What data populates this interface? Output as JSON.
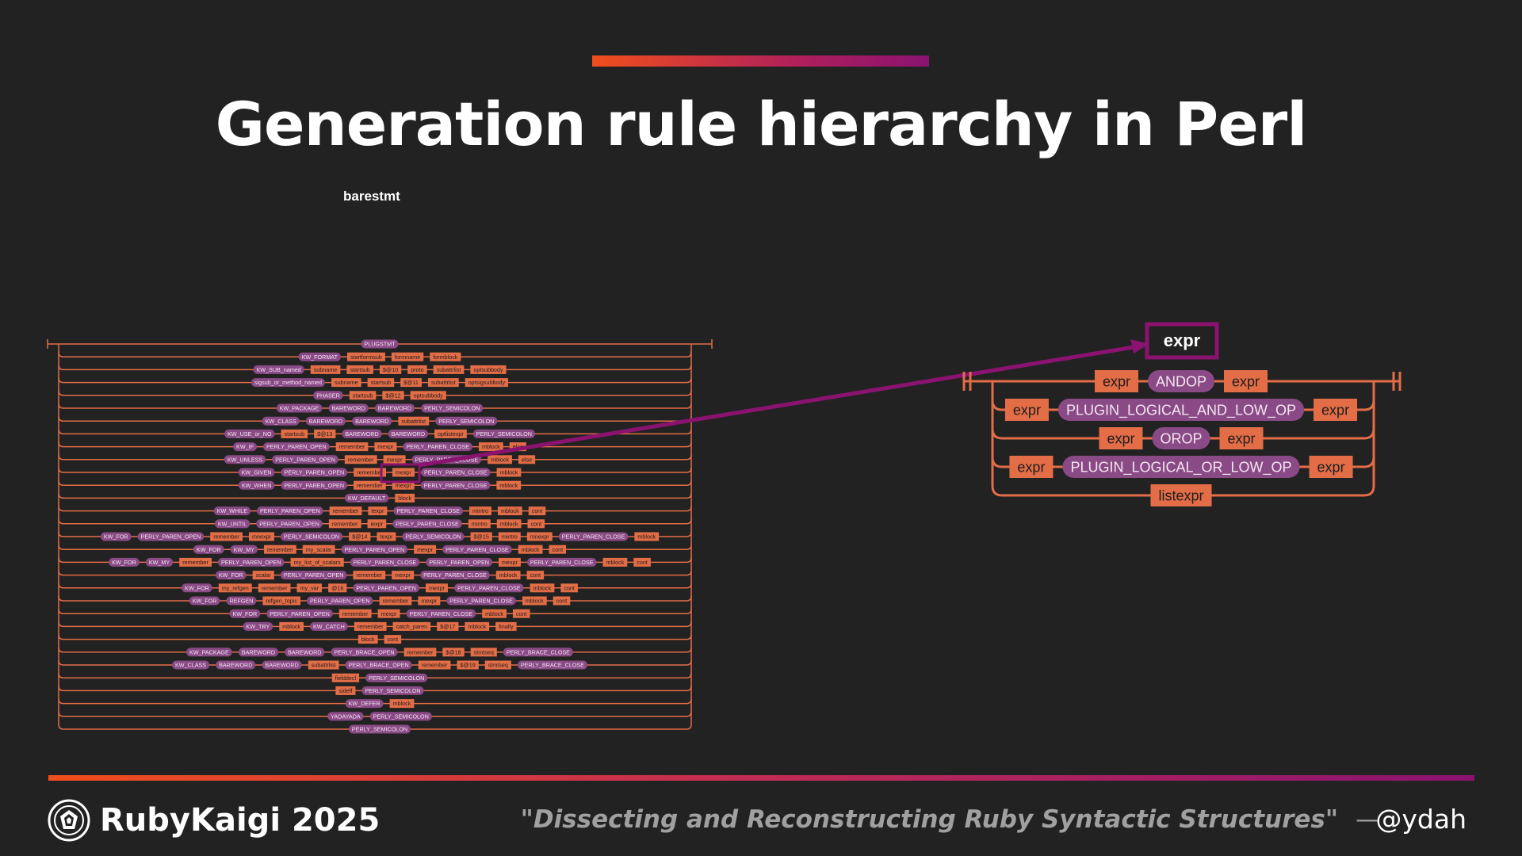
{
  "slide": {
    "title": "Generation rule hierarchy in Perl",
    "rule_name": "barestmt",
    "footer_brand": "RubyKaigi 2025",
    "footer_talk": "\"Dissecting and Reconstructing Ruby Syntactic Structures\"",
    "footer_dash": "—",
    "footer_handle": "@ydah"
  },
  "colors": {
    "background": "#222222",
    "terminal": "#8a4a86",
    "nonterminal": "#e36d47",
    "track": "#e36d47",
    "highlight": "#8a136f",
    "accent_start": "#f04e1c",
    "accent_end": "#8a136f"
  },
  "icons": {
    "logo": "rubykaigi-logo-icon"
  },
  "barestmt_rows": [
    [
      [
        "t",
        "PLUGSTMT"
      ]
    ],
    [
      [
        "t",
        "KW_FORMAT"
      ],
      [
        "n",
        "startformsub"
      ],
      [
        "n",
        "formname"
      ],
      [
        "n",
        "formblock"
      ]
    ],
    [
      [
        "t",
        "KW_SUB_named"
      ],
      [
        "n",
        "subname"
      ],
      [
        "n",
        "startsub"
      ],
      [
        "n",
        "$@10"
      ],
      [
        "n",
        "proto"
      ],
      [
        "n",
        "subattrlist"
      ],
      [
        "n",
        "optsubbody"
      ]
    ],
    [
      [
        "t",
        "sigsub_or_method_named"
      ],
      [
        "n",
        "subname"
      ],
      [
        "n",
        "startsub"
      ],
      [
        "n",
        "$@11"
      ],
      [
        "n",
        "subattrlist"
      ],
      [
        "n",
        "optsigsubbody"
      ]
    ],
    [
      [
        "t",
        "PHASER"
      ],
      [
        "n",
        "startsub"
      ],
      [
        "n",
        "$@12"
      ],
      [
        "n",
        "optsubbody"
      ]
    ],
    [
      [
        "t",
        "KW_PACKAGE"
      ],
      [
        "t",
        "BAREWORD"
      ],
      [
        "t",
        "BAREWORD"
      ],
      [
        "t",
        "PERLY_SEMICOLON"
      ]
    ],
    [
      [
        "t",
        "KW_CLASS"
      ],
      [
        "t",
        "BAREWORD"
      ],
      [
        "t",
        "BAREWORD"
      ],
      [
        "n",
        "subattrlist"
      ],
      [
        "t",
        "PERLY_SEMICOLON"
      ]
    ],
    [
      [
        "t",
        "KW_USE_or_NO"
      ],
      [
        "n",
        "startsub"
      ],
      [
        "n",
        "$@13"
      ],
      [
        "t",
        "BAREWORD"
      ],
      [
        "t",
        "BAREWORD"
      ],
      [
        "n",
        "optlistexpr"
      ],
      [
        "t",
        "PERLY_SEMICOLON"
      ]
    ],
    [
      [
        "t",
        "KW_IF"
      ],
      [
        "t",
        "PERLY_PAREN_OPEN"
      ],
      [
        "n",
        "remember"
      ],
      [
        "n",
        "mexpr"
      ],
      [
        "t",
        "PERLY_PAREN_CLOSE"
      ],
      [
        "n",
        "mblock"
      ],
      [
        "n",
        "else"
      ]
    ],
    [
      [
        "t",
        "KW_UNLESS"
      ],
      [
        "t",
        "PERLY_PAREN_OPEN"
      ],
      [
        "n",
        "remember"
      ],
      [
        "n",
        "mexpr"
      ],
      [
        "t",
        "PERLY_PAREN_CLOSE"
      ],
      [
        "n",
        "mblock"
      ],
      [
        "n",
        "else"
      ]
    ],
    [
      [
        "t",
        "KW_GIVEN"
      ],
      [
        "t",
        "PERLY_PAREN_OPEN"
      ],
      [
        "n",
        "remember"
      ],
      [
        "n",
        "mexpr"
      ],
      [
        "t",
        "PERLY_PAREN_CLOSE"
      ],
      [
        "n",
        "mblock"
      ]
    ],
    [
      [
        "t",
        "KW_WHEN"
      ],
      [
        "t",
        "PERLY_PAREN_OPEN"
      ],
      [
        "n",
        "remember"
      ],
      [
        "n",
        "mexpr"
      ],
      [
        "t",
        "PERLY_PAREN_CLOSE"
      ],
      [
        "n",
        "mblock"
      ]
    ],
    [
      [
        "t",
        "KW_DEFAULT"
      ],
      [
        "n",
        "block"
      ]
    ],
    [
      [
        "t",
        "KW_WHILE"
      ],
      [
        "t",
        "PERLY_PAREN_OPEN"
      ],
      [
        "n",
        "remember"
      ],
      [
        "n",
        "texpr"
      ],
      [
        "t",
        "PERLY_PAREN_CLOSE"
      ],
      [
        "n",
        "mintro"
      ],
      [
        "n",
        "mblock"
      ],
      [
        "n",
        "cont"
      ]
    ],
    [
      [
        "t",
        "KW_UNTIL"
      ],
      [
        "t",
        "PERLY_PAREN_OPEN"
      ],
      [
        "n",
        "remember"
      ],
      [
        "n",
        "iexpr"
      ],
      [
        "t",
        "PERLY_PAREN_CLOSE"
      ],
      [
        "n",
        "mintro"
      ],
      [
        "n",
        "mblock"
      ],
      [
        "n",
        "cont"
      ]
    ],
    [
      [
        "t",
        "KW_FOR"
      ],
      [
        "t",
        "PERLY_PAREN_OPEN"
      ],
      [
        "n",
        "remember"
      ],
      [
        "n",
        "mnexpr"
      ],
      [
        "t",
        "PERLY_SEMICOLON"
      ],
      [
        "n",
        "$@14"
      ],
      [
        "n",
        "texpr"
      ],
      [
        "t",
        "PERLY_SEMICOLON"
      ],
      [
        "n",
        "$@15"
      ],
      [
        "n",
        "mintro"
      ],
      [
        "n",
        "mnexpr"
      ],
      [
        "t",
        "PERLY_PAREN_CLOSE"
      ],
      [
        "n",
        "mblock"
      ]
    ],
    [
      [
        "t",
        "KW_FOR"
      ],
      [
        "t",
        "KW_MY"
      ],
      [
        "n",
        "remember"
      ],
      [
        "n",
        "my_scalar"
      ],
      [
        "t",
        "PERLY_PAREN_OPEN"
      ],
      [
        "n",
        "mexpr"
      ],
      [
        "t",
        "PERLY_PAREN_CLOSE"
      ],
      [
        "n",
        "mblock"
      ],
      [
        "n",
        "cont"
      ]
    ],
    [
      [
        "t",
        "KW_FOR"
      ],
      [
        "t",
        "KW_MY"
      ],
      [
        "n",
        "remember"
      ],
      [
        "t",
        "PERLY_PAREN_OPEN"
      ],
      [
        "n",
        "my_list_of_scalars"
      ],
      [
        "t",
        "PERLY_PAREN_CLOSE"
      ],
      [
        "t",
        "PERLY_PAREN_OPEN"
      ],
      [
        "n",
        "mexpr"
      ],
      [
        "t",
        "PERLY_PAREN_CLOSE"
      ],
      [
        "n",
        "mblock"
      ],
      [
        "n",
        "cont"
      ]
    ],
    [
      [
        "t",
        "KW_FOR"
      ],
      [
        "n",
        "scalar"
      ],
      [
        "t",
        "PERLY_PAREN_OPEN"
      ],
      [
        "n",
        "remember"
      ],
      [
        "n",
        "mexpr"
      ],
      [
        "t",
        "PERLY_PAREN_CLOSE"
      ],
      [
        "n",
        "mblock"
      ],
      [
        "n",
        "cont"
      ]
    ],
    [
      [
        "t",
        "KW_FOR"
      ],
      [
        "n",
        "my_refgen"
      ],
      [
        "n",
        "remember"
      ],
      [
        "n",
        "my_var"
      ],
      [
        "n",
        "@16"
      ],
      [
        "t",
        "PERLY_PAREN_OPEN"
      ],
      [
        "n",
        "mexpr"
      ],
      [
        "t",
        "PERLY_PAREN_CLOSE"
      ],
      [
        "n",
        "mblock"
      ],
      [
        "n",
        "cont"
      ]
    ],
    [
      [
        "t",
        "KW_FOR"
      ],
      [
        "t",
        "REFGEN"
      ],
      [
        "n",
        "refgen_topic"
      ],
      [
        "t",
        "PERLY_PAREN_OPEN"
      ],
      [
        "n",
        "remember"
      ],
      [
        "n",
        "mexpr"
      ],
      [
        "t",
        "PERLY_PAREN_CLOSE"
      ],
      [
        "n",
        "mblock"
      ],
      [
        "n",
        "cont"
      ]
    ],
    [
      [
        "t",
        "KW_FOR"
      ],
      [
        "t",
        "PERLY_PAREN_OPEN"
      ],
      [
        "n",
        "remember"
      ],
      [
        "n",
        "mexpr"
      ],
      [
        "t",
        "PERLY_PAREN_CLOSE"
      ],
      [
        "n",
        "mblock"
      ],
      [
        "n",
        "cont"
      ]
    ],
    [
      [
        "t",
        "KW_TRY"
      ],
      [
        "n",
        "mblock"
      ],
      [
        "t",
        "KW_CATCH"
      ],
      [
        "n",
        "remember"
      ],
      [
        "n",
        "catch_paren"
      ],
      [
        "n",
        "$@17"
      ],
      [
        "n",
        "mblock"
      ],
      [
        "n",
        "finally"
      ]
    ],
    [
      [
        "n",
        "block"
      ],
      [
        "n",
        "cont"
      ]
    ],
    [
      [
        "t",
        "KW_PACKAGE"
      ],
      [
        "t",
        "BAREWORD"
      ],
      [
        "t",
        "BAREWORD"
      ],
      [
        "t",
        "PERLY_BRACE_OPEN"
      ],
      [
        "n",
        "remember"
      ],
      [
        "n",
        "$@18"
      ],
      [
        "n",
        "stmtseq"
      ],
      [
        "t",
        "PERLY_BRACE_CLOSE"
      ]
    ],
    [
      [
        "t",
        "KW_CLASS"
      ],
      [
        "t",
        "BAREWORD"
      ],
      [
        "t",
        "BAREWORD"
      ],
      [
        "n",
        "subattrlist"
      ],
      [
        "t",
        "PERLY_BRACE_OPEN"
      ],
      [
        "n",
        "remember"
      ],
      [
        "n",
        "$@19"
      ],
      [
        "n",
        "stmtseq"
      ],
      [
        "t",
        "PERLY_BRACE_CLOSE"
      ]
    ],
    [
      [
        "n",
        "fielddecl"
      ],
      [
        "t",
        "PERLY_SEMICOLON"
      ]
    ],
    [
      [
        "n",
        "sideff"
      ],
      [
        "t",
        "PERLY_SEMICOLON"
      ]
    ],
    [
      [
        "t",
        "KW_DEFER"
      ],
      [
        "n",
        "mblock"
      ]
    ],
    [
      [
        "t",
        "YADAYADA"
      ],
      [
        "t",
        "PERLY_SEMICOLON"
      ]
    ],
    [
      [
        "t",
        "PERLY_SEMICOLON"
      ]
    ]
  ],
  "zoom": {
    "rule_name": "expr",
    "rows": [
      [
        [
          "n",
          "expr"
        ],
        [
          "t",
          "ANDOP"
        ],
        [
          "n",
          "expr"
        ]
      ],
      [
        [
          "n",
          "expr"
        ],
        [
          "t",
          "PLUGIN_LOGICAL_AND_LOW_OP"
        ],
        [
          "n",
          "expr"
        ]
      ],
      [
        [
          "n",
          "expr"
        ],
        [
          "t",
          "OROP"
        ],
        [
          "n",
          "expr"
        ]
      ],
      [
        [
          "n",
          "expr"
        ],
        [
          "t",
          "PLUGIN_LOGICAL_OR_LOW_OP"
        ],
        [
          "n",
          "expr"
        ]
      ],
      [
        [
          "n",
          "listexpr"
        ]
      ]
    ]
  }
}
